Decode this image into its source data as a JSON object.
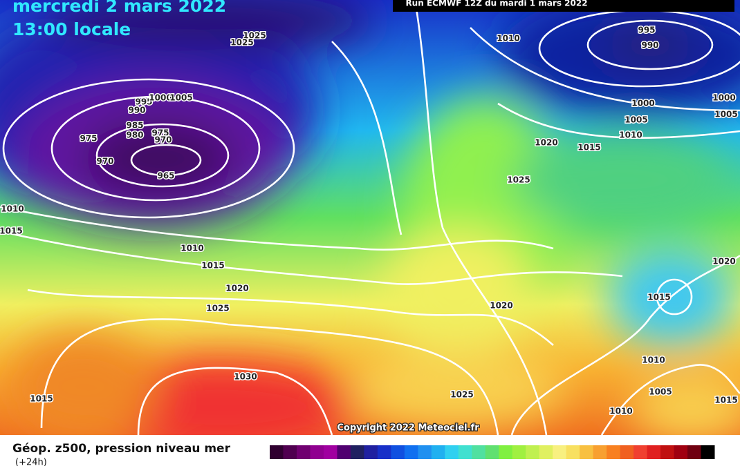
{
  "header": {
    "date": "mercredi 2 mars 2022",
    "time": "13:00 locale",
    "run": "Run ECMWF 12Z du mardi 1 mars 2022"
  },
  "isobar_labels": [
    "1025",
    "1025",
    "1010",
    "995",
    "990",
    "1000",
    "1000",
    "1005",
    "1005",
    "1010",
    "1020",
    "1015",
    "1025",
    "995",
    "1000",
    "1005",
    "990",
    "985",
    "980",
    "975",
    "970",
    "975",
    "970",
    "965",
    "1010",
    "1015",
    "1010",
    "1015",
    "1020",
    "1025",
    "1020",
    "1015",
    "1020",
    "1030",
    "1015",
    "1025",
    "1010",
    "1005",
    "1010",
    "1015"
  ],
  "copyright": "Copyright 2022 Meteociel.fr",
  "footer": {
    "title": "Géop. z500, pression niveau mer",
    "step": "(+24h)"
  }
}
